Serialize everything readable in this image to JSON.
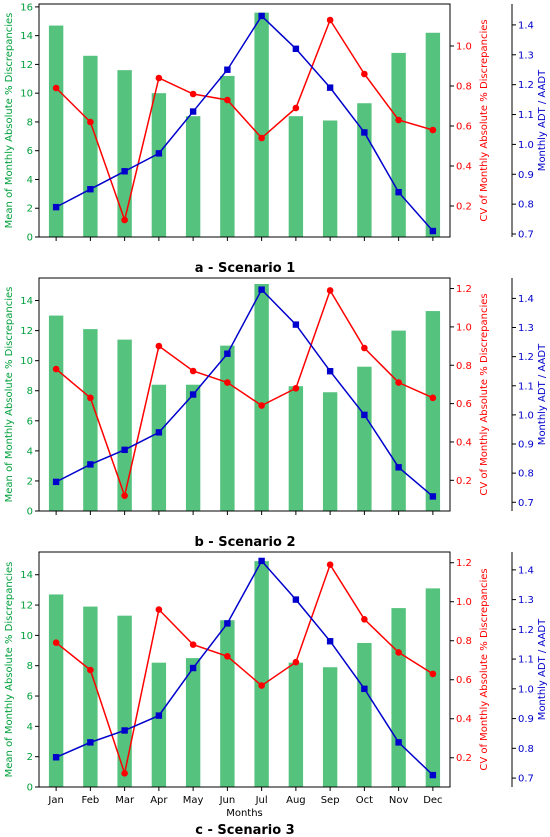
{
  "chart_data": [
    {
      "type": "bar",
      "title": "a - Scenario 1",
      "categories": [
        "Jan",
        "Feb",
        "Mar",
        "Apr",
        "May",
        "Jun",
        "Jul",
        "Aug",
        "Sep",
        "Oct",
        "Nov",
        "Dec"
      ],
      "xlabel": "",
      "y_left": {
        "label": "Mean of Monthly Absolute % Discrepancies",
        "range": [
          0,
          16.2
        ],
        "ticks": [
          0,
          2,
          4,
          6,
          8,
          10,
          12,
          14,
          16
        ],
        "color": "#00a03c"
      },
      "y_right1": {
        "label": "CV of Monthly Absolute % Discrepancies",
        "range": [
          0.045,
          1.21
        ],
        "ticks": [
          0.2,
          0.4,
          0.6,
          0.8,
          1.0
        ],
        "color": "#ff0000"
      },
      "y_right2": {
        "label": "Monthly ADT / AADT",
        "range": [
          0.69,
          1.47
        ],
        "ticks": [
          0.7,
          0.8,
          0.9,
          1.0,
          1.1,
          1.2,
          1.3,
          1.4
        ],
        "color": "#0000cc"
      },
      "bars": [
        14.7,
        12.6,
        11.6,
        10.0,
        8.4,
        11.2,
        15.6,
        8.4,
        8.1,
        9.3,
        12.8,
        14.2
      ],
      "cv": [
        0.79,
        0.62,
        0.13,
        0.84,
        0.76,
        0.73,
        0.54,
        0.69,
        1.13,
        0.86,
        0.63,
        0.58
      ],
      "ratio": [
        0.79,
        0.85,
        0.91,
        0.97,
        1.11,
        1.25,
        1.43,
        1.32,
        1.19,
        1.04,
        0.84,
        0.71
      ]
    },
    {
      "type": "bar",
      "title": "b - Scenario 2",
      "categories": [
        "Jan",
        "Feb",
        "Mar",
        "Apr",
        "May",
        "Jun",
        "Jul",
        "Aug",
        "Sep",
        "Oct",
        "Nov",
        "Dec"
      ],
      "xlabel": "",
      "y_left": {
        "label": "Mean of Monthly Absolute % Discrepancies",
        "range": [
          0,
          15.5
        ],
        "ticks": [
          0,
          2,
          4,
          6,
          8,
          10,
          12,
          14
        ],
        "color": "#00a03c"
      },
      "y_right1": {
        "label": "CV of Monthly Absolute % Discrepancies",
        "range": [
          0.04,
          1.255
        ],
        "ticks": [
          0.2,
          0.4,
          0.6,
          0.8,
          1.0,
          1.2
        ],
        "color": "#ff0000"
      },
      "y_right2": {
        "label": "Monthly ADT / AADT",
        "range": [
          0.67,
          1.47
        ],
        "ticks": [
          0.7,
          0.8,
          0.9,
          1.0,
          1.1,
          1.2,
          1.3,
          1.4
        ],
        "color": "#0000cc"
      },
      "bars": [
        13.0,
        12.1,
        11.4,
        8.4,
        8.4,
        11.0,
        15.1,
        8.3,
        7.9,
        9.6,
        12.0,
        13.3
      ],
      "cv": [
        0.78,
        0.63,
        0.12,
        0.9,
        0.77,
        0.71,
        0.59,
        0.68,
        1.19,
        0.89,
        0.71,
        0.63
      ],
      "ratio": [
        0.77,
        0.83,
        0.88,
        0.94,
        1.07,
        1.21,
        1.43,
        1.31,
        1.15,
        1.0,
        0.82,
        0.72
      ]
    },
    {
      "type": "bar",
      "title": "c - Scenario 3",
      "categories": [
        "Jan",
        "Feb",
        "Mar",
        "Apr",
        "May",
        "Jun",
        "Jul",
        "Aug",
        "Sep",
        "Oct",
        "Nov",
        "Dec"
      ],
      "xlabel": "Months",
      "y_left": {
        "label": "Mean of Monthly Absolute % Discrepancies",
        "range": [
          0,
          15.5
        ],
        "ticks": [
          0,
          2,
          4,
          6,
          8,
          10,
          12,
          14
        ],
        "color": "#00a03c"
      },
      "y_right1": {
        "label": "CV of Monthly Absolute % Discrepancies",
        "range": [
          0.05,
          1.255
        ],
        "ticks": [
          0.2,
          0.4,
          0.6,
          0.8,
          1.0,
          1.2
        ],
        "color": "#ff0000"
      },
      "y_right2": {
        "label": "Monthly ADT / AADT",
        "range": [
          0.67,
          1.46
        ],
        "ticks": [
          0.7,
          0.8,
          0.9,
          1.0,
          1.1,
          1.2,
          1.3,
          1.4
        ],
        "color": "#0000cc"
      },
      "bars": [
        12.7,
        11.9,
        11.3,
        8.2,
        8.5,
        11.0,
        14.9,
        8.2,
        7.9,
        9.5,
        11.8,
        13.1
      ],
      "cv": [
        0.79,
        0.65,
        0.12,
        0.96,
        0.78,
        0.72,
        0.57,
        0.69,
        1.19,
        0.91,
        0.74,
        0.63
      ],
      "ratio": [
        0.77,
        0.82,
        0.86,
        0.91,
        1.07,
        1.22,
        1.43,
        1.3,
        1.16,
        1.0,
        0.82,
        0.71
      ]
    }
  ]
}
